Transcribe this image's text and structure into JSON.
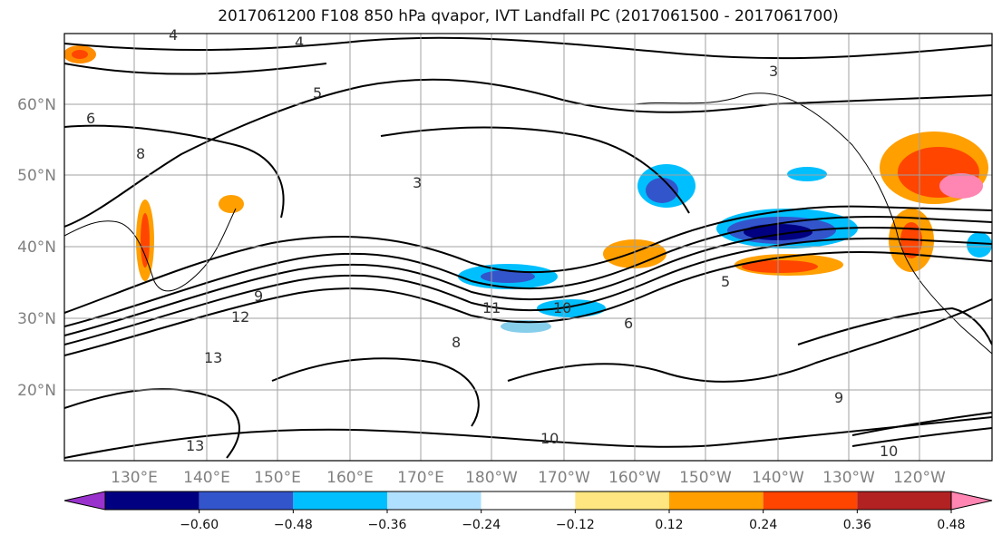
{
  "title": "2017061200 F108 850 hPa qvapor, IVT Landfall PC (2017061500 - 2017061700)",
  "latitude_labels": [
    "60°N",
    "50°N",
    "40°N",
    "30°N",
    "20°N"
  ],
  "longitude_labels": [
    "130°E",
    "140°E",
    "150°E",
    "160°E",
    "170°E",
    "180°W",
    "170°W",
    "160°W",
    "150°W",
    "140°W",
    "130°W",
    "120°W"
  ],
  "contour_labels": [
    "4",
    "4",
    "6",
    "5",
    "8",
    "9",
    "12",
    "13",
    "11",
    "10",
    "8",
    "6",
    "5",
    "9",
    "13",
    "10",
    "10",
    "3",
    "3"
  ],
  "colorbar": {
    "tick_labels": [
      "−0.60",
      "−0.48",
      "−0.36",
      "−0.24",
      "−0.12",
      "0.12",
      "0.24",
      "0.36",
      "0.48",
      "0.60"
    ],
    "colors": [
      "#9932cc",
      "#000080",
      "#3355cc",
      "#00bfff",
      "#b0e0ff",
      "#ffffff",
      "#ffe680",
      "#ff9f00",
      "#ff4500",
      "#b22222",
      "#ff85b2"
    ]
  }
}
